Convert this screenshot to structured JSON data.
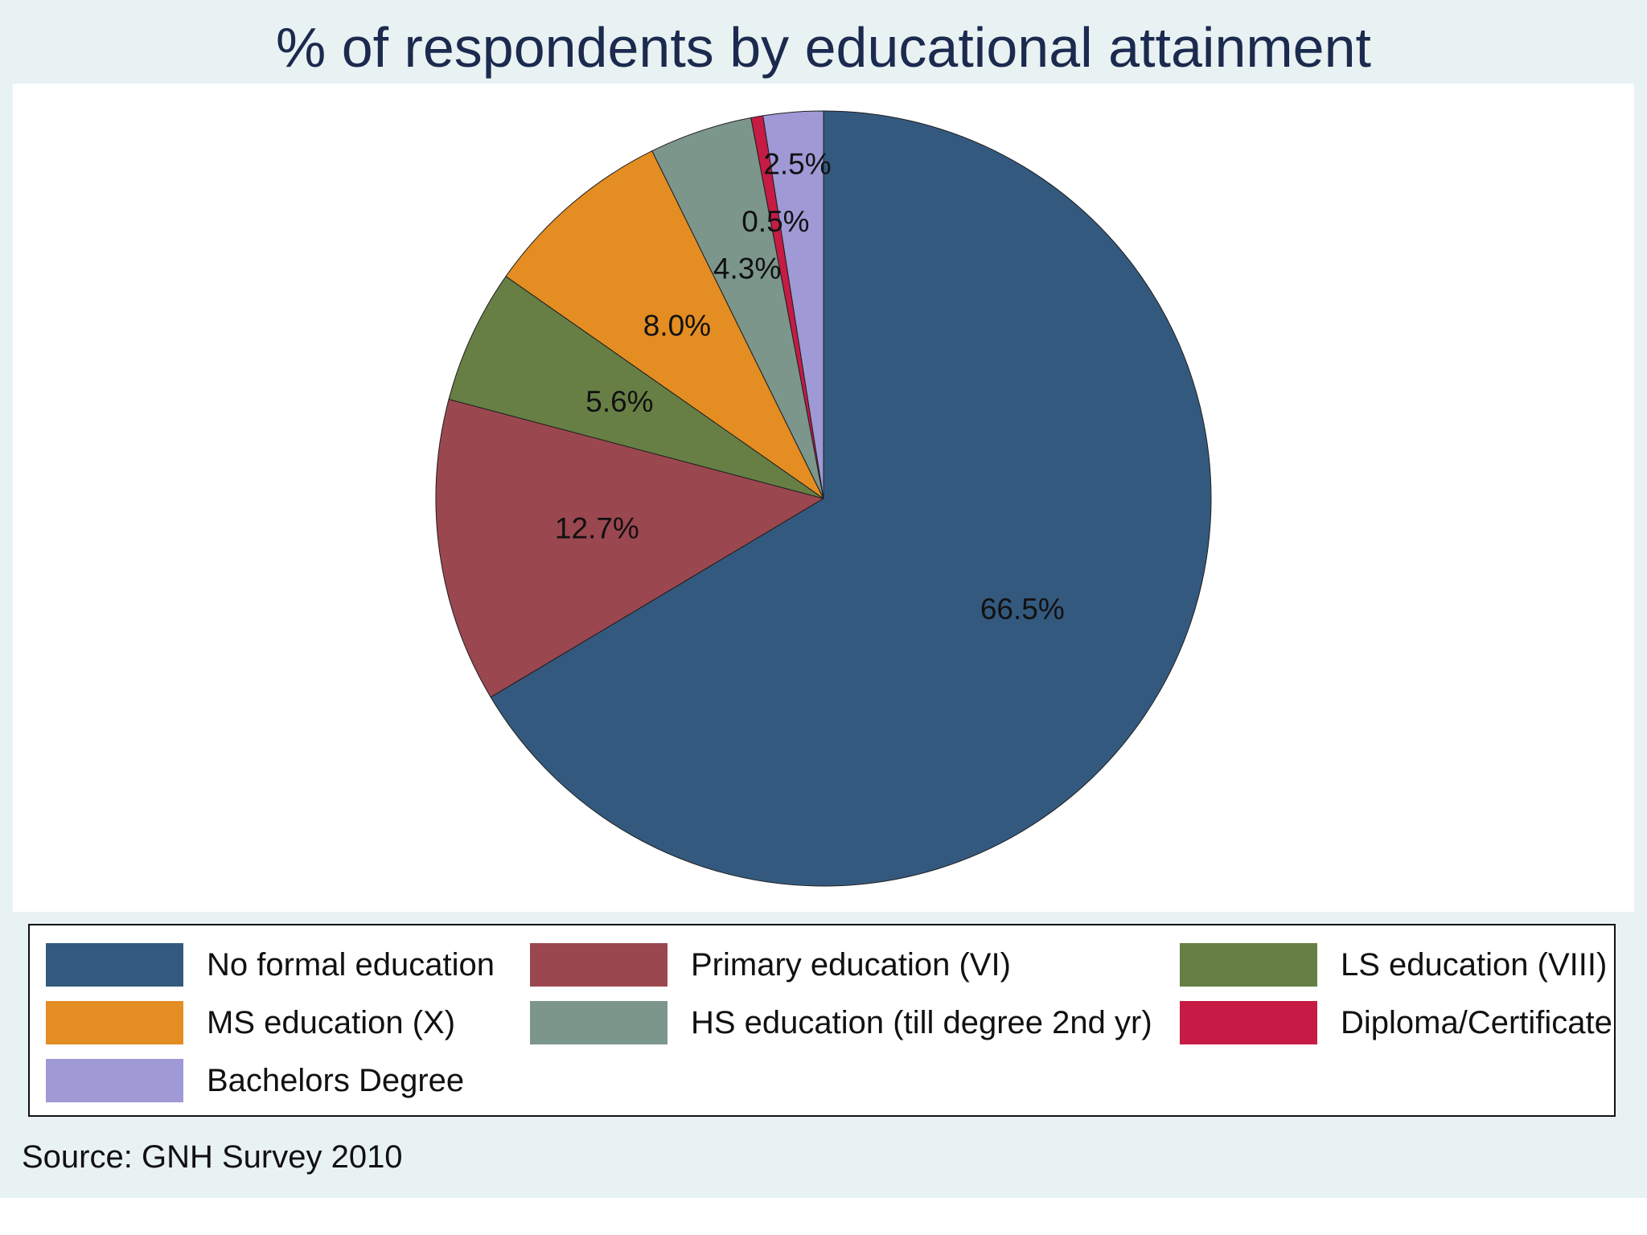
{
  "chart_data": {
    "type": "pie",
    "title": "% of respondents by educational attainment",
    "source": "Source: GNH Survey 2010",
    "legend_position": "bottom",
    "start": "12 o'clock, clockwise",
    "categories": [
      "No formal education",
      "Primary education (VI)",
      "LS education (VIII)",
      "MS education (X)",
      "HS education (till degree 2nd yr)",
      "Diploma/Certificate",
      "Bachelors Degree"
    ],
    "values": [
      66.5,
      12.7,
      5.6,
      8.0,
      4.3,
      0.5,
      2.5
    ],
    "value_labels": [
      "66.5%",
      "12.7%",
      "5.6%",
      "8.0%",
      "4.3%",
      "0.5%",
      "2.5%"
    ],
    "colors": [
      "#34597e",
      "#9b4750",
      "#677f44",
      "#e48d22",
      "#7c968b",
      "#c51b45",
      "#9f99d6"
    ]
  },
  "colors": {
    "background": "#e9f2f2",
    "plot_background": "#ffffff",
    "title": "#1b2a4e"
  }
}
